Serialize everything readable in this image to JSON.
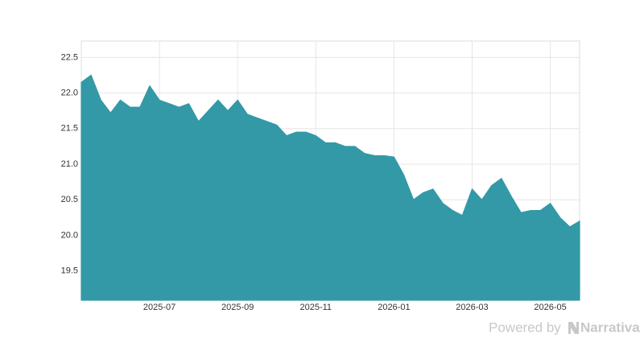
{
  "chart_data": {
    "type": "area",
    "x": [
      "2025-05",
      "2025-05",
      "2025-05",
      "2025-05",
      "2025-06",
      "2025-06",
      "2025-06",
      "2025-06",
      "2025-07",
      "2025-07",
      "2025-07",
      "2025-07",
      "2025-08",
      "2025-08",
      "2025-08",
      "2025-08",
      "2025-09",
      "2025-09",
      "2025-09",
      "2025-09",
      "2025-10",
      "2025-10",
      "2025-10",
      "2025-10",
      "2025-11",
      "2025-11",
      "2025-11",
      "2025-11",
      "2025-12",
      "2025-12",
      "2025-12",
      "2025-12",
      "2026-01",
      "2026-01",
      "2026-01",
      "2026-01",
      "2026-02",
      "2026-02",
      "2026-02",
      "2026-02",
      "2026-03",
      "2026-03",
      "2026-03",
      "2026-03",
      "2026-04",
      "2026-04",
      "2026-04",
      "2026-04",
      "2026-05",
      "2026-05",
      "2026-05",
      "2026-05"
    ],
    "series": [
      {
        "color": "#3399a6",
        "values": [
          22.15,
          22.25,
          21.9,
          21.72,
          21.9,
          21.8,
          21.8,
          22.1,
          21.9,
          21.85,
          21.8,
          21.85,
          21.6,
          21.75,
          21.9,
          21.75,
          21.9,
          21.7,
          21.65,
          21.6,
          21.55,
          21.4,
          21.45,
          21.45,
          21.4,
          21.3,
          21.3,
          21.25,
          21.25,
          21.15,
          21.12,
          21.12,
          21.1,
          20.85,
          20.5,
          20.6,
          20.65,
          20.45,
          20.35,
          20.28,
          20.65,
          20.5,
          20.7,
          20.8,
          20.55,
          20.32,
          20.35,
          20.35,
          20.45,
          20.25,
          20.12,
          20.2
        ]
      }
    ],
    "xticks": [
      "2025-07",
      "2025-09",
      "2025-11",
      "2026-01",
      "2026-03",
      "2026-05"
    ],
    "ylim": [
      19.09,
      22.73
    ],
    "yticks": [
      19.5,
      {
        "value": 20,
        "label": "20.0"
      },
      20.5,
      {
        "value": 21,
        "label": "21.0"
      },
      21.5,
      {
        "value": 22,
        "label": "22.0"
      },
      22.5
    ],
    "grid": true
  },
  "footer": {
    "text": "Powered by",
    "brand": "Narrativa"
  }
}
